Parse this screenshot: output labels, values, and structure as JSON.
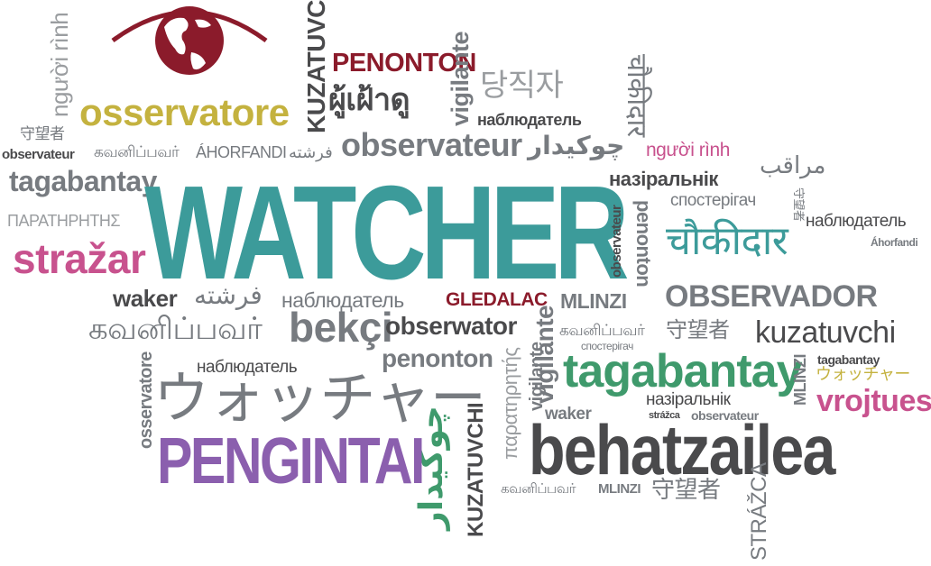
{
  "colors": {
    "teal": "#3c9b9a",
    "gray": "#777b80",
    "dark": "#4a4a4c",
    "maroon": "#8b1b2b",
    "pink": "#c8528e",
    "olive": "#c4b23f",
    "purple": "#8b5fae",
    "green": "#3f9a6c",
    "light": "#9a9da0"
  },
  "logo": {
    "icon": "globe-eye-icon"
  },
  "words": {
    "watcher": "WATCHER",
    "penonton_top": "PENONTON",
    "kuzatuvchi_top": "KUZATUVCHI",
    "vigilante_top": "vigilante",
    "nguoi_rinh_vert": "người rình",
    "osservatore_top": "osservatore",
    "thai": "ผู้เฝ้าดู",
    "korean": "당직자",
    "nabl_top": "наблюдатель",
    "hindi_vert": "चौकीदार",
    "chinese_left": "守望者",
    "observateur_small": "observateur",
    "tamil_top": "கவனிப்பவர்",
    "ahorfandi": "ÁHORFANDI",
    "farsi_top": "فرشته",
    "observateur_big": "observateur",
    "urdu_top": "چوکیدار",
    "nguoi_rinh": "người rình",
    "arabic": "مراقب",
    "tagabantay_left": "tagabantay",
    "nazir_top": "назіральнік",
    "spost_top": "спостерігач",
    "chinese_vert": "守望者",
    "nabl_right": "наблюдатель",
    "greek": "ΠΑΡΑΤΗΡΗΤΗΣ",
    "observateur_vert": "observateur",
    "penonton_vert": "penonton",
    "hindi": "चौकीदार",
    "ahorfandi_small": "Áhorfandi",
    "strazar": "stražar",
    "waker": "waker",
    "farsi_mid": "فرشته",
    "nabl_mid": "наблюдатель",
    "gledalac": "GLEDALAC",
    "vigilante_mid": "vigilante",
    "mlinzi_mid": "MLINZI",
    "observador": "OBSERVADOR",
    "tamil_mid": "கவனிப்பவர்",
    "bekci": "bekçi",
    "observator": "obserwator",
    "tamil_right": "கவனிப்பவர்",
    "chinese_right": "守望者",
    "kuzatuvchi": "kuzatuvchi",
    "spost_small": "спостерігач",
    "osservatore_vert": "osservatore",
    "nabl_low": "наблюдатель",
    "penonton_mid": "penonton",
    "greek_vert": "παρατηρητής",
    "vigilante_low": "vigilante",
    "tagabantay_big": "tagabantay",
    "mlinzi_vert": "MLINZI",
    "tagabantay_small": "tagabantay",
    "japanese_small": "ウォッチャー",
    "vrojtues": "vrojtues",
    "japanese_big": "ウォッチャー",
    "nazir_low": "назіральнік",
    "waker_low": "waker",
    "strazca_small": "strážca",
    "observateur_low": "observateur",
    "urdu_vert": "چوکیدار",
    "kuzatuvchi_vert": "KUZATUVCHI",
    "pengintai": "PENGINTAI",
    "behatzailea": "behatzailea",
    "tamil_low": "கவனிப்பவர்",
    "mlinzi_low": "MLINZI",
    "chinese_low": "守望者",
    "strazca_vert": "STRÁŽCA"
  }
}
